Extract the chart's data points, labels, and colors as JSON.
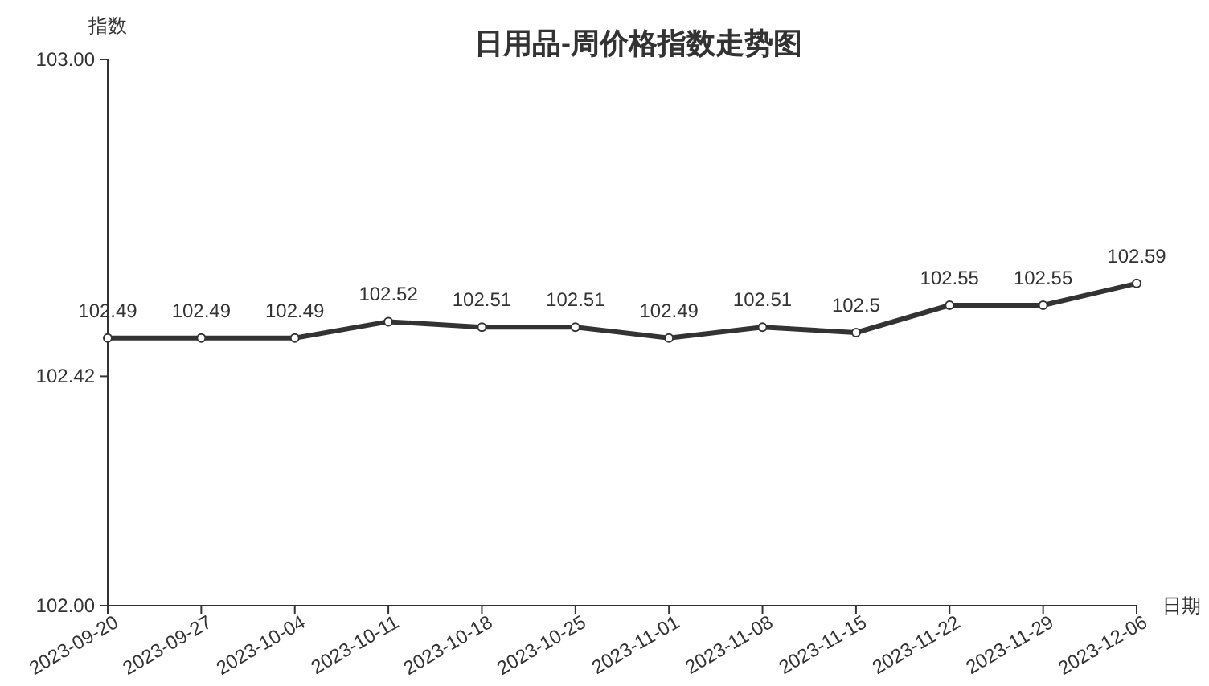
{
  "chart_data": {
    "type": "line",
    "title": "日用品-周价格指数走势图",
    "xlabel": "日期",
    "ylabel": "指数",
    "categories": [
      "2023-09-20",
      "2023-09-27",
      "2023-10-04",
      "2023-10-11",
      "2023-10-18",
      "2023-10-25",
      "2023-11-01",
      "2023-11-08",
      "2023-11-15",
      "2023-11-22",
      "2023-11-29",
      "2023-12-06"
    ],
    "series": [
      {
        "color": "#333333",
        "values": [
          102.49,
          102.49,
          102.49,
          102.52,
          102.51,
          102.51,
          102.49,
          102.51,
          102.5,
          102.55,
          102.55,
          102.59
        ]
      }
    ],
    "ylim": [
      102,
      103
    ],
    "yticks": [
      {
        "value": 102,
        "label": "102.00"
      },
      {
        "value": 102.42,
        "label": "102.42"
      },
      {
        "value": 103,
        "label": "103.00"
      }
    ],
    "grid": false,
    "marker": "circle",
    "line_style": "solid",
    "data_labels": true
  }
}
